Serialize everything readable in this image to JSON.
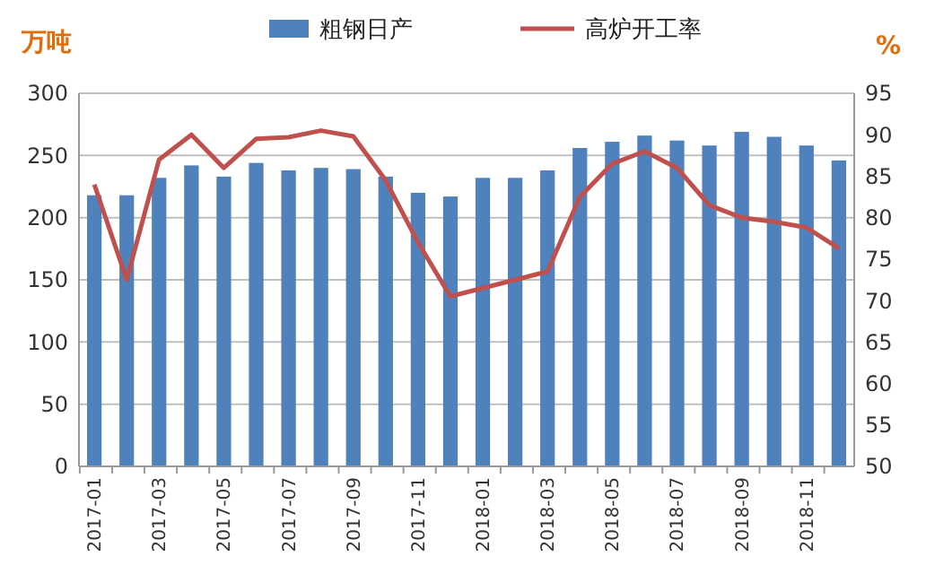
{
  "chart_data": {
    "type": "bar",
    "ylabel": "万吨",
    "y2label": "%",
    "categories": [
      "2017-01",
      null,
      "2017-03",
      null,
      "2017-05",
      null,
      "2017-07",
      null,
      "2017-09",
      null,
      "2017-11",
      null,
      "2018-01",
      null,
      "2018-03",
      null,
      "2018-05",
      null,
      "2018-07",
      null,
      "2018-09",
      null,
      "2018-11",
      null
    ],
    "series": [
      {
        "name": "粗钢日产",
        "color": "#4f81bd",
        "values": [
          218,
          218,
          232,
          242,
          233,
          244,
          238,
          240,
          239,
          233,
          220,
          217,
          232,
          232,
          238,
          256,
          261,
          266,
          262,
          258,
          269,
          265,
          258,
          246
        ]
      },
      {
        "name": "高炉开工率",
        "type": "line",
        "axis": "y2",
        "color": "#c0504d",
        "values": [
          84,
          72.5,
          87,
          90,
          86,
          89.5,
          89.7,
          90.5,
          89.8,
          84.5,
          77,
          70.5,
          71.5,
          72.5,
          73.5,
          82.5,
          86.5,
          88,
          86,
          81.5,
          80,
          79.5,
          78.8,
          76.3
        ]
      }
    ],
    "ylim": [
      0,
      300
    ],
    "yticks": [
      0,
      50,
      100,
      150,
      200,
      250,
      300
    ],
    "y2lim": [
      50,
      95
    ],
    "y2ticks": [
      50,
      55,
      60,
      65,
      70,
      75,
      80,
      85,
      90,
      95
    ],
    "grid": "y",
    "legend": "top",
    "marker": "none",
    "line_style": "solid"
  }
}
